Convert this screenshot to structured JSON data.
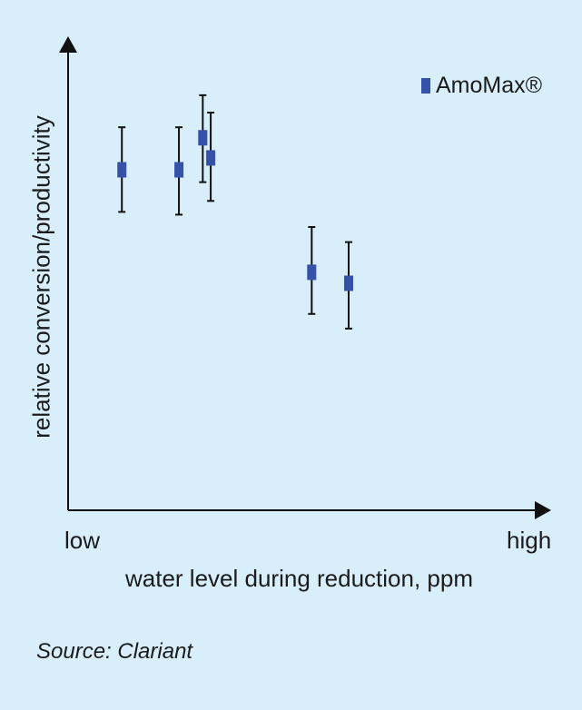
{
  "chart_data": {
    "type": "scatter",
    "title": "",
    "xlabel": "water level during reduction, ppm",
    "ylabel": "relative conversion/productivity",
    "x_tick_labels": {
      "low": "low",
      "high": "high"
    },
    "xlim": [
      0,
      100
    ],
    "ylim": [
      0,
      100
    ],
    "grid": false,
    "legend_placement": "top-right",
    "series": [
      {
        "name": "AmoMax®",
        "color": "#3651a8",
        "points": [
          {
            "x": 11.5,
            "y": 74.5,
            "err_low": 9.3,
            "err_high": 9.2
          },
          {
            "x": 23.7,
            "y": 74.5,
            "err_low": 9.9,
            "err_high": 9.2
          },
          {
            "x": 28.8,
            "y": 81.5,
            "err_low": 9.8,
            "err_high": 9.2
          },
          {
            "x": 30.5,
            "y": 77.1,
            "err_low": 9.5,
            "err_high": 9.8
          },
          {
            "x": 52.1,
            "y": 52.1,
            "err_low": 9.2,
            "err_high": 9.8
          },
          {
            "x": 60.0,
            "y": 49.7,
            "err_low": 10.0,
            "err_high": 8.9
          }
        ]
      }
    ]
  },
  "source_text": "Source: Clariant"
}
